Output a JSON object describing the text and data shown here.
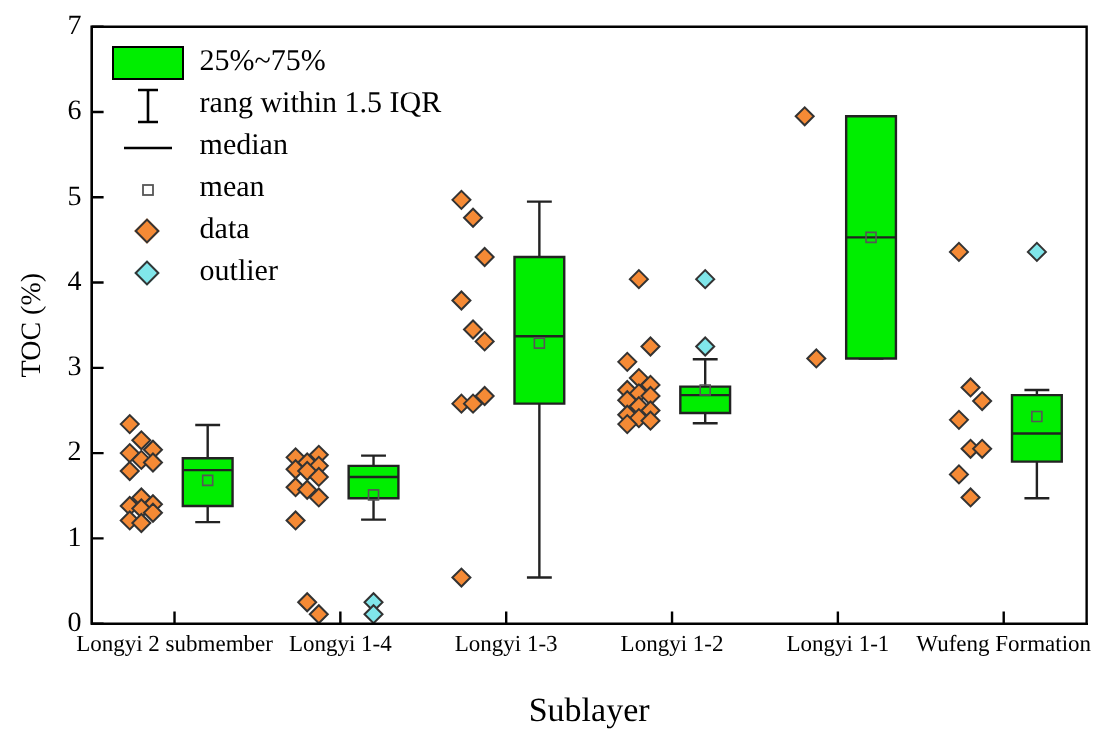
{
  "chart_data": {
    "type": "box",
    "xlabel": "Sublayer",
    "ylabel": "TOC (%)",
    "categories": [
      "Longyi 2 submember",
      "Longyi 1-4",
      "Longyi 1-3",
      "Longyi 1-2",
      "Longyi 1-1",
      "Wufeng Formation"
    ],
    "ylim": [
      0,
      7
    ],
    "yticks": [
      0,
      1,
      2,
      3,
      4,
      5,
      6,
      7
    ],
    "grid": false,
    "legend": "top left",
    "marker": "diamond",
    "annotations": [
      "rang within 1.5 IQR",
      "median",
      "mean"
    ],
    "series": [
      {
        "type": "box",
        "name": "25%~75%",
        "color": "#00ee00",
        "boxes": [
          {
            "low": 1.19,
            "q1": 1.38,
            "median": 1.8,
            "q3": 1.94,
            "high": 2.33,
            "mean": 1.68
          },
          {
            "low": 1.22,
            "q1": 1.47,
            "median": 1.72,
            "q3": 1.85,
            "high": 1.97,
            "mean": 1.51
          },
          {
            "low": 0.54,
            "q1": 2.58,
            "median": 3.37,
            "q3": 4.3,
            "high": 4.95,
            "mean": 3.29
          },
          {
            "low": 2.35,
            "q1": 2.47,
            "median": 2.68,
            "q3": 2.78,
            "high": 3.1,
            "mean": 2.74
          },
          {
            "low": 3.11,
            "q1": 3.11,
            "median": 4.53,
            "q3": 5.95,
            "high": 5.95,
            "mean": 4.53
          },
          {
            "low": 1.47,
            "q1": 1.9,
            "median": 2.23,
            "q3": 2.68,
            "high": 2.74,
            "mean": 2.43
          }
        ]
      },
      {
        "type": "scatter",
        "name": "data",
        "color": "#f58a35",
        "x": [
          "Longyi 2 submember",
          "Longyi 2 submember",
          "Longyi 2 submember",
          "Longyi 2 submember",
          "Longyi 2 submember",
          "Longyi 2 submember",
          "Longyi 2 submember",
          "Longyi 2 submember",
          "Longyi 2 submember",
          "Longyi 2 submember",
          "Longyi 2 submember",
          "Longyi 2 submember",
          "Longyi 2 submember",
          "Longyi 2 submember",
          "Longyi 1-4",
          "Longyi 1-4",
          "Longyi 1-4",
          "Longyi 1-4",
          "Longyi 1-4",
          "Longyi 1-4",
          "Longyi 1-4",
          "Longyi 1-4",
          "Longyi 1-4",
          "Longyi 1-4",
          "Longyi 1-4",
          "Longyi 1-4",
          "Longyi 1-4",
          "Longyi 1-3",
          "Longyi 1-3",
          "Longyi 1-3",
          "Longyi 1-3",
          "Longyi 1-3",
          "Longyi 1-3",
          "Longyi 1-3",
          "Longyi 1-3",
          "Longyi 1-3",
          "Longyi 1-3",
          "Longyi 1-2",
          "Longyi 1-2",
          "Longyi 1-2",
          "Longyi 1-2",
          "Longyi 1-2",
          "Longyi 1-2",
          "Longyi 1-2",
          "Longyi 1-2",
          "Longyi 1-2",
          "Longyi 1-2",
          "Longyi 1-2",
          "Longyi 1-2",
          "Longyi 1-2",
          "Longyi 1-2",
          "Longyi 1-2",
          "Longyi 1-1",
          "Longyi 1-1",
          "Wufeng Formation",
          "Wufeng Formation",
          "Wufeng Formation",
          "Wufeng Formation",
          "Wufeng Formation",
          "Wufeng Formation",
          "Wufeng Formation",
          "Wufeng Formation"
        ],
        "values": [
          2.34,
          2.15,
          2.04,
          2.0,
          1.92,
          1.89,
          1.79,
          1.48,
          1.4,
          1.38,
          1.35,
          1.3,
          1.21,
          1.18,
          1.98,
          1.95,
          1.89,
          1.85,
          1.81,
          1.79,
          1.72,
          1.6,
          1.57,
          1.48,
          1.21,
          0.25,
          0.11,
          4.97,
          4.76,
          4.3,
          3.79,
          3.45,
          3.31,
          2.58,
          2.58,
          2.67,
          0.54,
          4.04,
          3.25,
          3.07,
          2.88,
          2.8,
          2.74,
          2.7,
          2.67,
          2.62,
          2.55,
          2.5,
          2.45,
          2.41,
          2.38,
          2.34,
          5.95,
          3.11,
          4.36,
          2.77,
          2.61,
          2.39,
          2.05,
          2.05,
          1.75,
          1.48
        ]
      },
      {
        "type": "scatter",
        "name": "outlier",
        "color": "#80e6ea",
        "x": [
          "Longyi 1-4",
          "Longyi 1-4",
          "Longyi 1-2",
          "Longyi 1-2",
          "Wufeng Formation"
        ],
        "values": [
          0.25,
          0.11,
          3.25,
          4.04,
          4.36
        ]
      }
    ]
  }
}
